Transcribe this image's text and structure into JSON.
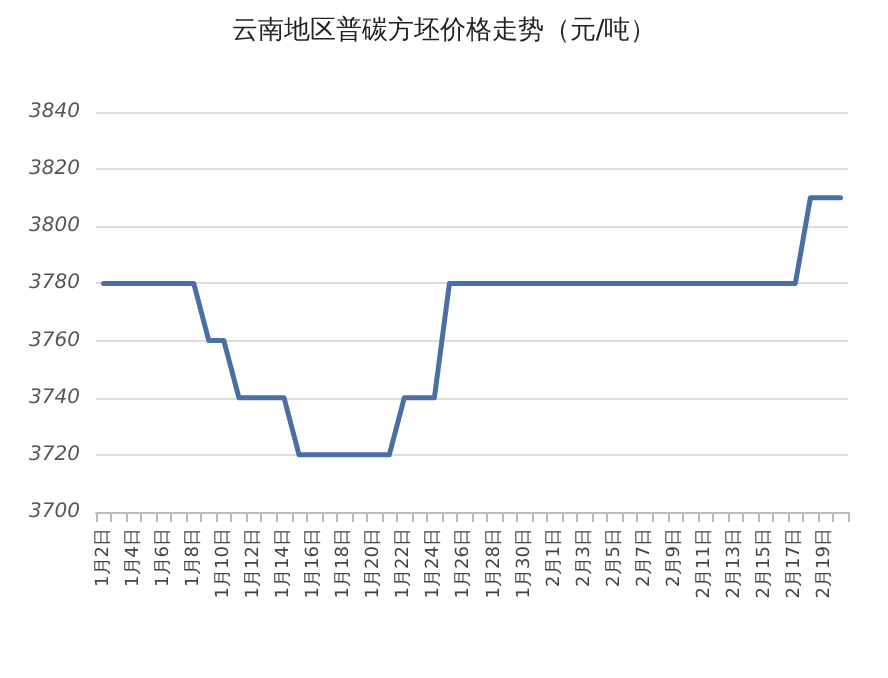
{
  "chart_data": {
    "type": "line",
    "title": "云南地区普碳方坯价格走势（元/吨）",
    "categories": [
      "1月2日",
      null,
      "1月4日",
      null,
      "1月6日",
      null,
      "1月8日",
      null,
      "1月10日",
      null,
      "1月12日",
      null,
      "1月14日",
      null,
      "1月16日",
      null,
      "1月18日",
      null,
      "1月20日",
      null,
      "1月22日",
      null,
      "1月24日",
      null,
      "1月26日",
      null,
      "1月28日",
      null,
      "1月30日",
      null,
      "2月1日",
      null,
      "2月3日",
      null,
      "2月5日",
      null,
      "2月7日",
      null,
      "2月9日",
      null,
      "2月11日",
      null,
      "2月13日",
      null,
      "2月15日",
      null,
      "2月17日",
      null,
      "2月19日",
      null
    ],
    "series": [
      {
        "color": "#4a6fa5",
        "values": [
          3780,
          3780,
          3780,
          3780,
          3780,
          3780,
          3780,
          3760,
          3760,
          3740,
          3740,
          3740,
          3740,
          3720,
          3720,
          3720,
          3720,
          3720,
          3720,
          3720,
          3740,
          3740,
          3740,
          3780,
          3780,
          3780,
          3780,
          3780,
          3780,
          3780,
          3780,
          3780,
          3780,
          3780,
          3780,
          3780,
          3780,
          3780,
          3780,
          3780,
          3780,
          3780,
          3780,
          3780,
          3780,
          3780,
          3780,
          3810,
          3810,
          3810
        ]
      }
    ],
    "ylim": [
      3700,
      3840
    ],
    "yticks": [
      3700,
      3720,
      3740,
      3760,
      3780,
      3800,
      3820,
      3840
    ],
    "grid": "y",
    "marker": "none",
    "line_style": "solid"
  }
}
